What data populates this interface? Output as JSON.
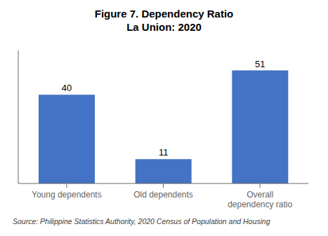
{
  "chart_data": {
    "type": "bar",
    "title": "Figure 7. Dependency Ratio\nLa Union: 2020",
    "categories": [
      "Young dependents",
      "Old dependents",
      "Overall\ndependency ratio"
    ],
    "values": [
      40,
      11,
      51
    ],
    "color": "#4472C4",
    "ylim": [
      0,
      60
    ],
    "tick_labels": "x",
    "data_labels": true,
    "grid": false,
    "annotation": "Source: Philippine Statistics Authority, 2020 Census of Population and Housing"
  }
}
